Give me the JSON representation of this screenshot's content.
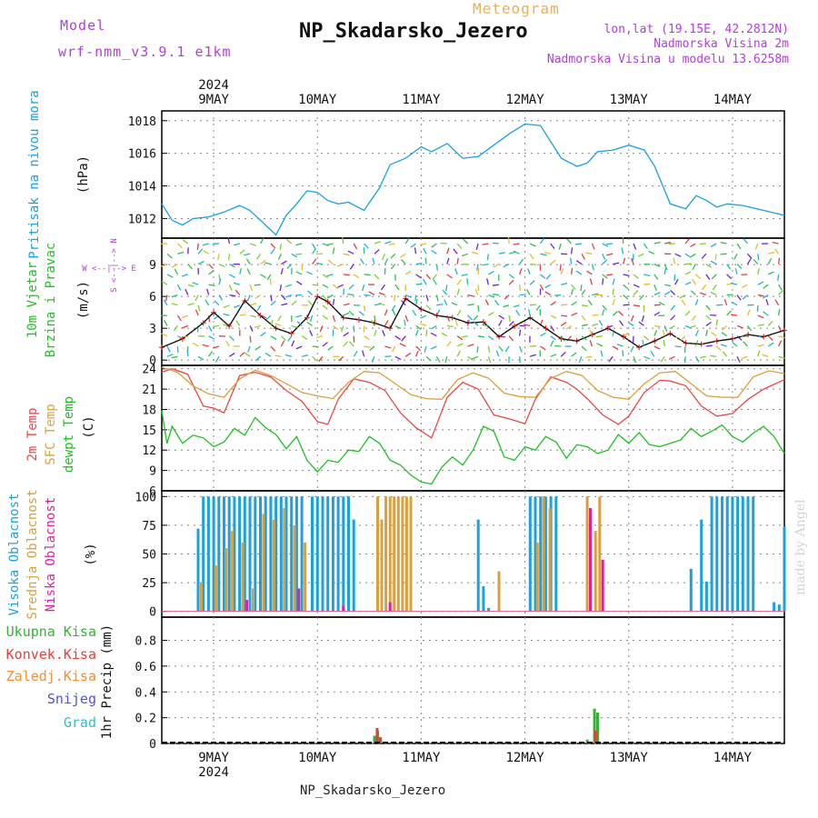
{
  "header": {
    "model_label": "Model",
    "model_version": "wrf-nmm_v3.9.1 e1km",
    "title": "Meteogram",
    "station": "NP_Skadarsko_Jezero",
    "lonlat": "lon,lat (19.15E, 42.2812N)",
    "altitude": "Nadmorska Visina 2m",
    "model_altitude": "Nadmorska Visina u modelu 13.6258m"
  },
  "footer": {
    "station": "NP_Skadarsko_Jezero",
    "credit": "made by Angel"
  },
  "colors": {
    "pressure": "#1ba0e0",
    "temp2m": "#e84848",
    "sfc": "#d8a040",
    "dew": "#20c020",
    "high_cloud": "#1ba0e0",
    "mid_cloud": "#d8a040",
    "low_cloud": "#e020a0",
    "total_precip": "#38b038",
    "conv_precip": "#e04040",
    "frozen": "#f09030",
    "snow": "#5050e0",
    "hail": "#30c0c0"
  },
  "chart_data": [
    {
      "type": "line",
      "panel": "pressure",
      "ylabel": [
        "Pritisak na nivou mora",
        "(hPa)"
      ],
      "ylim": [
        1010.8,
        1018.6
      ],
      "yticks": [
        1012,
        1014,
        1016,
        1018
      ],
      "x_start_day": 8.5,
      "x_end_day": 14.5,
      "year": "2024",
      "day_labels": [
        "9MAY",
        "10MAY",
        "11MAY",
        "12MAY",
        "13MAY",
        "14MAY"
      ],
      "series": [
        {
          "color_key": "pressure",
          "x": [
            8.5,
            8.6,
            8.7,
            8.8,
            8.95,
            9.1,
            9.25,
            9.35,
            9.5,
            9.6,
            9.7,
            9.8,
            9.9,
            10.0,
            10.1,
            10.2,
            10.3,
            10.45,
            10.6,
            10.7,
            10.85,
            11.0,
            11.1,
            11.25,
            11.4,
            11.55,
            11.7,
            11.85,
            12.0,
            12.15,
            12.25,
            12.35,
            12.5,
            12.6,
            12.7,
            12.85,
            13.0,
            13.15,
            13.25,
            13.4,
            13.55,
            13.65,
            13.75,
            13.85,
            13.95,
            14.1,
            14.3,
            14.5
          ],
          "y": [
            1012.9,
            1011.9,
            1011.6,
            1012.0,
            1012.1,
            1012.4,
            1012.8,
            1012.5,
            1011.6,
            1011.0,
            1012.2,
            1012.9,
            1013.7,
            1013.6,
            1013.1,
            1012.9,
            1013.0,
            1012.5,
            1013.9,
            1015.3,
            1015.7,
            1016.4,
            1016.1,
            1016.6,
            1015.7,
            1015.8,
            1016.5,
            1017.2,
            1017.8,
            1017.7,
            1016.7,
            1015.7,
            1015.2,
            1015.4,
            1016.1,
            1016.2,
            1016.5,
            1016.2,
            1015.2,
            1012.9,
            1012.6,
            1013.4,
            1013.1,
            1012.7,
            1012.9,
            1012.8,
            1012.5,
            1012.2
          ]
        }
      ]
    },
    {
      "type": "line",
      "panel": "wind",
      "ylabel": [
        "10m Vjetar",
        "Brzina i Pravac",
        "(m/s)"
      ],
      "legend": "W <--|--> E   S <--|--> N",
      "ylim": [
        -0.5,
        11.5
      ],
      "yticks": [
        0,
        3,
        6,
        9
      ],
      "series": [
        {
          "name": "wind speed",
          "color": "#111111",
          "x": [
            8.5,
            8.7,
            8.9,
            9.0,
            9.15,
            9.3,
            9.45,
            9.6,
            9.75,
            9.9,
            10.0,
            10.1,
            10.25,
            10.4,
            10.55,
            10.7,
            10.85,
            11.0,
            11.15,
            11.3,
            11.45,
            11.6,
            11.75,
            11.9,
            12.05,
            12.2,
            12.35,
            12.5,
            12.65,
            12.8,
            12.95,
            13.1,
            13.25,
            13.4,
            13.55,
            13.7,
            13.85,
            14.0,
            14.15,
            14.3,
            14.5
          ],
          "y": [
            1.2,
            2.0,
            3.5,
            4.5,
            3.2,
            5.6,
            4.2,
            3.0,
            2.5,
            4.0,
            6.0,
            5.5,
            4.0,
            3.8,
            3.5,
            3.0,
            5.8,
            4.8,
            4.2,
            4.0,
            3.5,
            3.6,
            2.2,
            3.2,
            4.0,
            3.0,
            2.0,
            1.8,
            2.4,
            3.0,
            2.2,
            1.2,
            1.8,
            2.5,
            1.6,
            1.5,
            1.8,
            2.0,
            2.4,
            2.2,
            2.8
          ]
        }
      ]
    },
    {
      "type": "line",
      "panel": "temperature",
      "ylabel": [
        "2m Temp",
        "SFC Temp",
        "dewpt Temp",
        "(C)"
      ],
      "ylim": [
        6,
        24.5
      ],
      "yticks": [
        6,
        9,
        12,
        15,
        18,
        21,
        24
      ],
      "series": [
        {
          "name": "2m Temp",
          "color_key": "temp2m",
          "x": [
            8.5,
            8.6,
            8.75,
            8.9,
            9.0,
            9.1,
            9.25,
            9.4,
            9.55,
            9.7,
            9.85,
            10.0,
            10.1,
            10.2,
            10.35,
            10.5,
            10.65,
            10.8,
            10.95,
            11.1,
            11.25,
            11.4,
            11.55,
            11.7,
            11.85,
            12.0,
            12.1,
            12.25,
            12.4,
            12.5,
            12.6,
            12.75,
            12.9,
            13.0,
            13.15,
            13.3,
            13.4,
            13.55,
            13.7,
            13.85,
            14.0,
            14.15,
            14.3,
            14.5
          ],
          "y": [
            23.5,
            24.0,
            23.2,
            18.5,
            18.2,
            17.5,
            23.0,
            23.5,
            22.8,
            20.8,
            19.2,
            16.2,
            15.8,
            19.5,
            22.5,
            22.0,
            20.8,
            17.5,
            15.3,
            13.8,
            19.8,
            22.0,
            21.0,
            17.2,
            16.6,
            15.9,
            19.5,
            22.8,
            22.0,
            21.0,
            19.6,
            17.2,
            15.8,
            17.0,
            20.5,
            22.3,
            22.2,
            21.5,
            18.5,
            17.0,
            17.4,
            19.5,
            21.0,
            22.4
          ]
        },
        {
          "name": "SFC Temp",
          "color_key": "sfc",
          "x": [
            8.5,
            8.65,
            8.8,
            8.95,
            9.1,
            9.25,
            9.4,
            9.55,
            9.7,
            9.85,
            10.0,
            10.15,
            10.3,
            10.45,
            10.6,
            10.75,
            10.9,
            11.05,
            11.2,
            11.35,
            11.5,
            11.65,
            11.8,
            11.95,
            12.1,
            12.25,
            12.4,
            12.55,
            12.7,
            12.85,
            13.0,
            13.15,
            13.3,
            13.45,
            13.6,
            13.75,
            13.9,
            14.05,
            14.2,
            14.35,
            14.5
          ],
          "y": [
            24.2,
            23.5,
            21.5,
            20.3,
            19.8,
            22.5,
            23.8,
            23.0,
            21.8,
            20.5,
            20.0,
            19.6,
            22.0,
            23.6,
            23.4,
            21.8,
            20.2,
            19.6,
            19.5,
            22.4,
            23.4,
            22.6,
            20.4,
            19.9,
            19.8,
            22.6,
            23.6,
            23.0,
            20.8,
            19.8,
            19.5,
            21.8,
            23.4,
            23.6,
            21.8,
            20.0,
            19.8,
            19.8,
            22.8,
            23.7,
            23.3
          ]
        },
        {
          "name": "dewpt Temp",
          "color_key": "dew",
          "x": [
            8.5,
            8.55,
            8.6,
            8.7,
            8.8,
            8.9,
            9.0,
            9.1,
            9.2,
            9.3,
            9.4,
            9.5,
            9.6,
            9.7,
            9.8,
            9.9,
            10.0,
            10.1,
            10.2,
            10.3,
            10.4,
            10.5,
            10.6,
            10.7,
            10.8,
            10.9,
            11.0,
            11.1,
            11.2,
            11.3,
            11.4,
            11.5,
            11.6,
            11.7,
            11.8,
            11.9,
            12.0,
            12.1,
            12.2,
            12.3,
            12.4,
            12.5,
            12.6,
            12.7,
            12.8,
            12.9,
            13.0,
            13.1,
            13.2,
            13.3,
            13.4,
            13.5,
            13.6,
            13.7,
            13.8,
            13.9,
            14.0,
            14.1,
            14.2,
            14.3,
            14.4,
            14.5
          ],
          "y": [
            17.8,
            13.0,
            15.5,
            13.0,
            14.2,
            13.8,
            12.5,
            13.2,
            15.2,
            14.2,
            16.8,
            15.3,
            14.3,
            12.2,
            14.0,
            10.5,
            8.8,
            10.5,
            10.2,
            12.0,
            11.8,
            14.0,
            13.0,
            10.5,
            9.8,
            8.3,
            7.3,
            7.0,
            9.5,
            11.0,
            9.8,
            12.0,
            15.5,
            14.8,
            11.0,
            10.5,
            12.5,
            12.0,
            14.0,
            13.2,
            10.8,
            12.8,
            12.5,
            11.5,
            12.0,
            14.3,
            13.0,
            14.6,
            12.8,
            12.5,
            13.0,
            13.5,
            15.2,
            14.0,
            14.8,
            15.7,
            14.0,
            13.2,
            14.5,
            15.5,
            14.0,
            11.5
          ]
        }
      ]
    },
    {
      "type": "bar",
      "panel": "cloud",
      "ylabel": [
        "Visoka Oblacnost",
        "Srednja Oblacnost",
        "Niska Oblacnost",
        "(%)"
      ],
      "ylim": [
        -5,
        105
      ],
      "yticks": [
        0,
        25,
        50,
        75,
        100
      ],
      "series": [
        {
          "name": "Visoka Oblacnost",
          "color_key": "high_cloud",
          "x": [
            8.85,
            8.9,
            8.95,
            9.0,
            9.05,
            9.1,
            9.15,
            9.2,
            9.25,
            9.3,
            9.35,
            9.4,
            9.45,
            9.5,
            9.55,
            9.6,
            9.65,
            9.7,
            9.75,
            9.8,
            9.85,
            9.95,
            10.0,
            10.05,
            10.1,
            10.15,
            10.2,
            10.25,
            10.3,
            10.35,
            11.55,
            11.6,
            11.65,
            12.05,
            12.1,
            12.15,
            12.2,
            12.25,
            12.3,
            13.6,
            13.7,
            13.75,
            13.8,
            13.85,
            13.9,
            13.95,
            14.0,
            14.05,
            14.1,
            14.15,
            14.2,
            14.4,
            14.45,
            14.5
          ],
          "y": [
            72,
            100,
            100,
            100,
            100,
            100,
            100,
            100,
            100,
            100,
            100,
            100,
            100,
            100,
            100,
            100,
            100,
            100,
            100,
            100,
            100,
            100,
            100,
            100,
            100,
            100,
            100,
            100,
            100,
            80,
            80,
            22,
            3,
            100,
            100,
            100,
            100,
            100,
            100,
            37,
            80,
            26,
            100,
            100,
            100,
            100,
            100,
            100,
            100,
            100,
            100,
            8,
            6,
            74
          ]
        },
        {
          "name": "Srednja Oblacnost",
          "color_key": "mid_cloud",
          "x": [
            8.88,
            9.02,
            9.12,
            9.18,
            9.28,
            9.38,
            9.48,
            9.58,
            9.68,
            9.78,
            9.88,
            10.58,
            10.62,
            10.66,
            10.7,
            10.74,
            10.78,
            10.82,
            10.86,
            10.9,
            11.75,
            12.12,
            12.18,
            12.24,
            12.6,
            12.68,
            12.72
          ],
          "y": [
            25,
            40,
            55,
            70,
            60,
            20,
            85,
            80,
            90,
            75,
            60,
            100,
            80,
            100,
            100,
            100,
            100,
            100,
            100,
            100,
            35,
            60,
            100,
            90,
            100,
            70,
            100
          ]
        },
        {
          "name": "Niska Oblacnost",
          "color_key": "low_cloud",
          "x": [
            9.32,
            9.82,
            10.25,
            10.7,
            12.63,
            12.75
          ],
          "y": [
            10,
            20,
            5,
            8,
            90,
            45
          ]
        }
      ]
    },
    {
      "type": "bar",
      "panel": "precip",
      "ylabel": [
        "1hr Precip (mm)"
      ],
      "legend": [
        "Ukupna Kisa",
        "Konvek.Kisa",
        "Zaledj.Kisa",
        "Snijeg",
        "Grad"
      ],
      "ylim": [
        0,
        0.98
      ],
      "yticks": [
        0,
        0.2,
        0.4,
        0.6,
        0.8
      ],
      "series": [
        {
          "name": "Ukupna Kisa",
          "color_key": "total_precip",
          "x": [
            10.55,
            10.58,
            10.61,
            12.6,
            12.67,
            12.7
          ],
          "y": [
            0.06,
            0.1,
            0.04,
            0.03,
            0.27,
            0.24
          ]
        },
        {
          "name": "Konvek.Kisa",
          "color_key": "conv_precip",
          "x": [
            10.575,
            10.605,
            12.68
          ],
          "y": [
            0.12,
            0.05,
            0.1
          ]
        }
      ]
    }
  ]
}
